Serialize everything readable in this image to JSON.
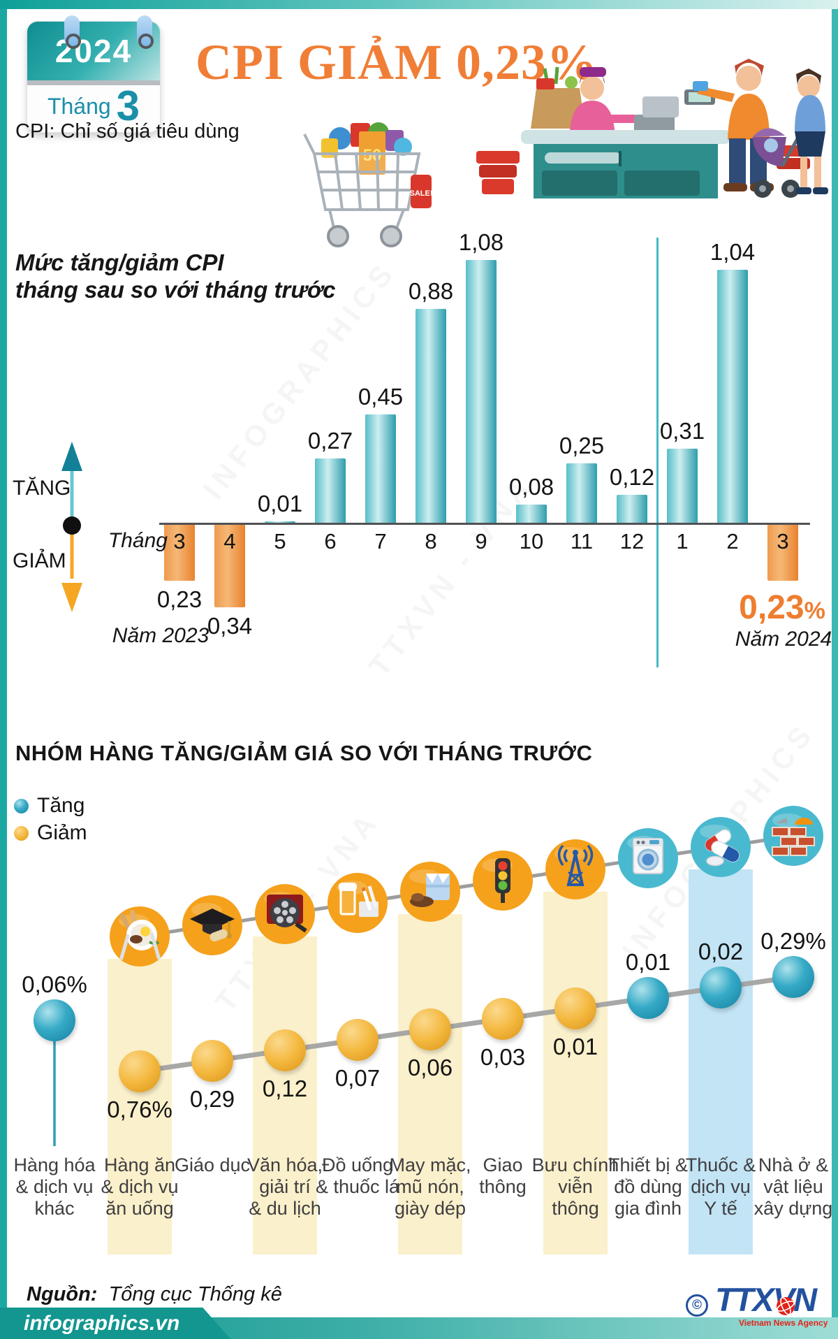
{
  "header": {
    "calendar": {
      "year": "2024",
      "month_label": "Tháng",
      "month_number": "3"
    },
    "title": "CPI GIẢM 0,23%",
    "subtitle": "CPI: Chỉ số giá tiêu dùng"
  },
  "chart1": {
    "title_line1": "Mức tăng/giảm CPI",
    "title_line2": "tháng sau so với tháng trước",
    "axis_arrow": {
      "up_label": "TĂNG",
      "down_label": "GIẢM"
    },
    "month_axis_label": "Tháng",
    "year_left_label": "Năm 2023",
    "year_right_label": "Năm 2024",
    "highlight_value": "0,23",
    "highlight_unit": "%"
  },
  "section2": {
    "title": "NHÓM HÀNG TĂNG/GIẢM GIÁ SO VỚI THÁNG TRƯỚC",
    "legend": {
      "up_label": "Tăng",
      "down_label": "Giảm"
    }
  },
  "chart_data": [
    {
      "type": "bar",
      "title": "Mức tăng/giảm CPI tháng sau so với tháng trước",
      "categories": [
        "3",
        "4",
        "5",
        "6",
        "7",
        "8",
        "9",
        "10",
        "11",
        "12",
        "1",
        "2",
        "3"
      ],
      "values": [
        -0.23,
        -0.34,
        0.01,
        0.27,
        0.45,
        0.88,
        1.08,
        0.08,
        0.25,
        0.12,
        0.31,
        1.04,
        -0.23
      ],
      "value_labels": [
        "0,23",
        "0,34",
        "0,01",
        "0,27",
        "0,45",
        "0,88",
        "1,08",
        "0,08",
        "0,25",
        "0,12",
        "0,31",
        "1,04",
        ""
      ],
      "year_groups": [
        {
          "label": "Năm 2023",
          "months": [
            "3",
            "4",
            "5",
            "6",
            "7",
            "8",
            "9",
            "10",
            "11",
            "12"
          ]
        },
        {
          "label": "Năm 2024",
          "months": [
            "1",
            "2",
            "3"
          ]
        }
      ],
      "xlabel": "Tháng",
      "ylabel": "",
      "ylim": [
        -0.4,
        1.2
      ],
      "grid": false,
      "colors": {
        "positive": "#2d9dad",
        "negative": "#e8822d"
      }
    },
    {
      "type": "line",
      "title": "Nhóm hàng tăng/giảm giá so với tháng trước",
      "categories": [
        {
          "name": "Hàng hóa & dịch vụ khác",
          "lines": [
            "Hàng hóa",
            "& dịch vụ",
            "khác"
          ],
          "icon": "",
          "highlight": "none"
        },
        {
          "name": "Hàng ăn & dịch vụ ăn uống",
          "lines": [
            "Hàng ăn",
            "& dịch vụ",
            "ăn uống"
          ],
          "icon": "food-plate-icon",
          "highlight": "yellow"
        },
        {
          "name": "Giáo dục",
          "lines": [
            "Giáo dục"
          ],
          "icon": "graduation-cap-icon",
          "highlight": "none"
        },
        {
          "name": "Văn hóa, giải trí & du lịch",
          "lines": [
            "Văn hóa,",
            "giải trí",
            "& du lịch"
          ],
          "icon": "film-reel-icon",
          "highlight": "yellow"
        },
        {
          "name": "Đồ uống & thuốc lá",
          "lines": [
            "Đồ uống",
            "& thuốc lá"
          ],
          "icon": "beer-cigarettes-icon",
          "highlight": "none"
        },
        {
          "name": "May mặc, mũ nón, giày dép",
          "lines": [
            "May mặc,",
            "mũ nón,",
            "giày dép"
          ],
          "icon": "clothing-shoes-icon",
          "highlight": "yellow"
        },
        {
          "name": "Giao thông",
          "lines": [
            "Giao",
            "thông"
          ],
          "icon": "traffic-light-icon",
          "highlight": "none"
        },
        {
          "name": "Bưu chính viễn thông",
          "lines": [
            "Bưu chính",
            "viễn",
            "thông"
          ],
          "icon": "antenna-tower-icon",
          "highlight": "yellow"
        },
        {
          "name": "Thiết bị & đồ dùng gia đình",
          "lines": [
            "Thiết bị &",
            "đồ dùng",
            "gia đình"
          ],
          "icon": "washing-machine-icon",
          "highlight": "none"
        },
        {
          "name": "Thuốc & dịch vụ Y tế",
          "lines": [
            "Thuốc &",
            "dịch vụ",
            "Y tế"
          ],
          "icon": "medicine-capsule-icon",
          "highlight": "blue"
        },
        {
          "name": "Nhà ở & vật liệu xây dựng",
          "lines": [
            "Nhà ở &",
            "vật liệu",
            "xây dựng"
          ],
          "icon": "bricks-construction-icon",
          "highlight": "none"
        }
      ],
      "values": [
        0.06,
        -0.76,
        -0.29,
        -0.12,
        -0.07,
        -0.06,
        -0.03,
        -0.01,
        0.01,
        0.02,
        0.29
      ],
      "value_labels": [
        "0,06%",
        "0,76%",
        "0,29",
        "0,12",
        "0,07",
        "0,06",
        "0,03",
        "0,01",
        "0,01",
        "0,02",
        "0,29%"
      ],
      "directions": [
        "up",
        "down",
        "down",
        "down",
        "down",
        "down",
        "down",
        "down",
        "up",
        "up",
        "up"
      ],
      "legend": {
        "up": "Tăng",
        "down": "Giảm"
      },
      "colors": {
        "up": "#2fa3bc",
        "down": "#f4b83e",
        "band_yellow": "#faf0cb",
        "band_blue": "#c2e4f5"
      }
    }
  ],
  "footer": {
    "source_label": "Nguồn:",
    "source": "Tổng cục Thống kê",
    "copyright_symbol": "©",
    "agency_name": "TTXVN",
    "agency_subtitle": "Vietnam News Agency",
    "brand": "infographics.vn"
  },
  "decor": {
    "cart_sale_tag": "SALE!",
    "cart_bag_label": "50",
    "watermark1": "TTXVN - VNA",
    "watermark2": "INFOGRAPHICS"
  }
}
